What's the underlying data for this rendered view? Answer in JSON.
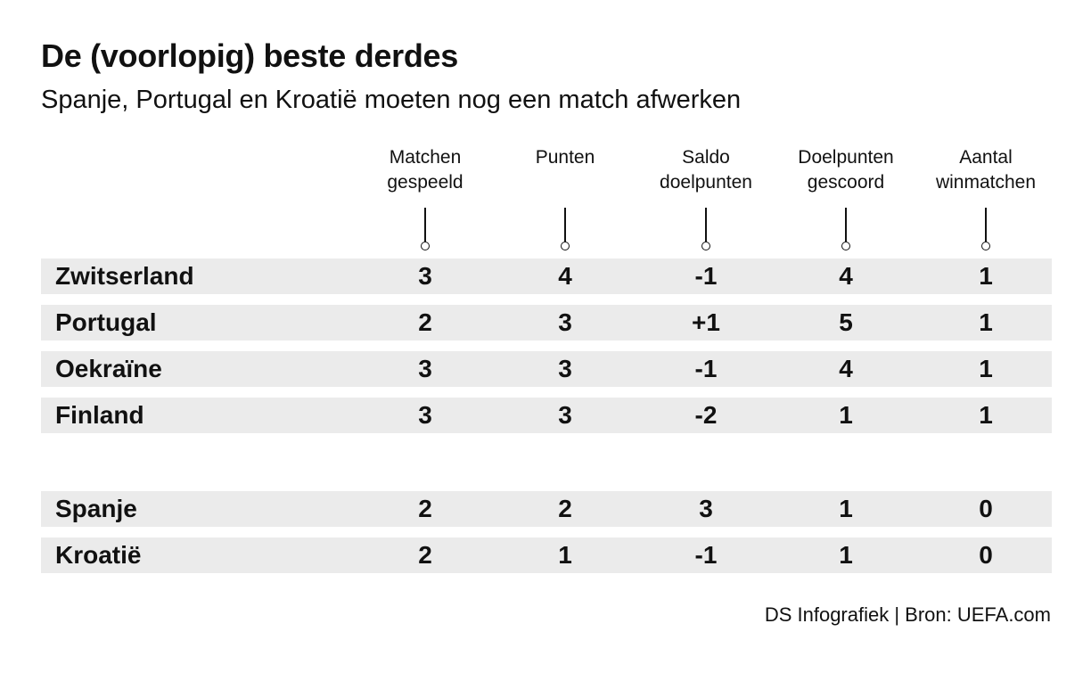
{
  "title": "De (voorlopig) beste derdes",
  "subtitle": "Spanje, Portugal en Kroatië moeten nog een match afwerken",
  "footer": "DS Infografiek | Bron: UEFA.com",
  "chart_data": {
    "type": "table",
    "columns": [
      "Matchen\ngespeeld",
      "Punten",
      "Saldo\ndoelpunten",
      "Doelpunten\ngescoord",
      "Aantal\nwinmatchen"
    ],
    "rows": [
      {
        "name": "Zwitserland",
        "values": [
          "3",
          "4",
          "-1",
          "4",
          "1"
        ]
      },
      {
        "name": "Portugal",
        "values": [
          "2",
          "3",
          "+1",
          "5",
          "1"
        ]
      },
      {
        "name": "Oekraïne",
        "values": [
          "3",
          "3",
          "-1",
          "4",
          "1"
        ]
      },
      {
        "name": "Finland",
        "values": [
          "3",
          "3",
          "-2",
          "1",
          "1"
        ]
      },
      {
        "name": "Spanje",
        "values": [
          "2",
          "2",
          "3",
          "1",
          "0"
        ]
      },
      {
        "name": "Kroatië",
        "values": [
          "2",
          "1",
          "-1",
          "1",
          "0"
        ]
      }
    ]
  }
}
